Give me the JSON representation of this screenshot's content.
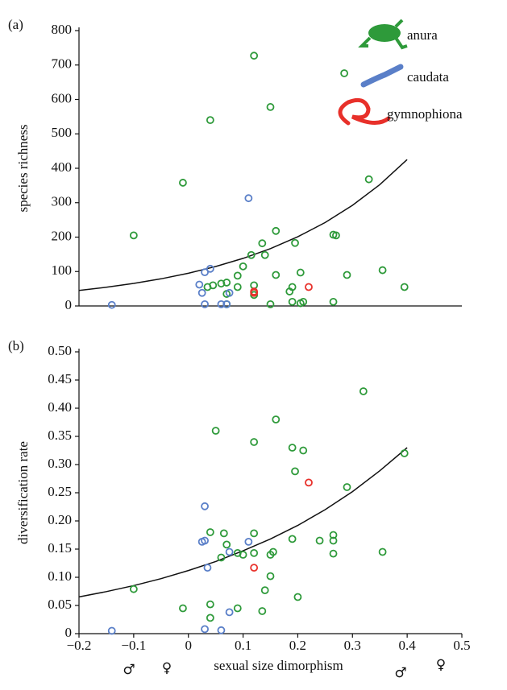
{
  "chart_data": [
    {
      "type": "scatter",
      "panel_label": "(a)",
      "ylabel": "species richness",
      "xlim": [
        -0.2,
        0.5
      ],
      "ylim": [
        0,
        800
      ],
      "yticks": [
        0,
        100,
        200,
        300,
        400,
        500,
        600,
        700,
        800
      ],
      "legend": "upper right",
      "series": [
        {
          "name": "anura",
          "color": "#2e9a3a",
          "x": [
            0.12,
            0.285,
            0.15,
            0.04,
            0.33,
            -0.01,
            -0.1,
            0.16,
            0.265,
            0.27,
            0.195,
            0.135,
            0.14,
            0.115,
            0.1,
            0.355,
            0.205,
            0.29,
            0.16,
            0.09,
            0.07,
            0.06,
            0.045,
            0.035,
            0.12,
            0.09,
            0.19,
            0.185,
            0.07,
            0.12,
            0.395,
            0.265,
            0.19,
            0.205,
            0.21,
            0.15,
            0.07
          ],
          "values": [
            727,
            676,
            578,
            540,
            368,
            358,
            205,
            218,
            207,
            205,
            183,
            182,
            148,
            148,
            115,
            104,
            97,
            90,
            90,
            88,
            68,
            65,
            60,
            55,
            60,
            55,
            55,
            42,
            35,
            32,
            55,
            12,
            12,
            8,
            12,
            5,
            5
          ]
        },
        {
          "name": "caudata",
          "color": "#5a7fc8",
          "x": [
            0.11,
            0.04,
            0.03,
            0.02,
            0.025,
            0.075,
            0.03,
            0.06,
            0.07,
            -0.14
          ],
          "values": [
            313,
            108,
            98,
            62,
            38,
            38,
            5,
            5,
            5,
            3
          ]
        },
        {
          "name": "gymnophiona",
          "color": "#e8302a",
          "x": [
            0.22,
            0.12,
            0.12
          ],
          "values": [
            55,
            42,
            38
          ]
        }
      ],
      "fit": {
        "color": "#111111",
        "x": [
          -0.2,
          -0.15,
          -0.1,
          -0.05,
          0,
          0.05,
          0.1,
          0.15,
          0.2,
          0.25,
          0.3,
          0.35,
          0.4
        ],
        "values": [
          45.0,
          54.2,
          65.4,
          78.9,
          95,
          114.6,
          138.2,
          166.6,
          201,
          242.4,
          292.3,
          352.6,
          425.2
        ]
      }
    },
    {
      "type": "scatter",
      "panel_label": "(b)",
      "ylabel": "diversification rate",
      "xlabel": "sexual size dimorphism",
      "xlim": [
        -0.2,
        0.5
      ],
      "xticks": [
        {
          "value": -0.2,
          "label": "−0.2"
        },
        {
          "value": -0.1,
          "label": "−0.1"
        },
        0,
        0.1,
        0.2,
        0.3,
        0.4,
        0.5
      ],
      "ylim": [
        0,
        0.5
      ],
      "yticks": [
        0,
        0.05,
        {
          "value": 0.1,
          "label": "0.10"
        },
        0.15,
        {
          "value": 0.2,
          "label": "0.20"
        },
        0.25,
        {
          "value": 0.3,
          "label": "0.30"
        },
        0.35,
        {
          "value": 0.4,
          "label": "0.40"
        },
        0.45,
        {
          "value": 0.5,
          "label": "0.50"
        }
      ],
      "series": [
        {
          "color": "#2e9a3a",
          "x": [
            0.32,
            0.16,
            0.05,
            0.12,
            0.19,
            0.21,
            0.395,
            0.195,
            0.29,
            0.265,
            0.265,
            0.24,
            0.19,
            0.12,
            0.04,
            0.065,
            0.07,
            0.155,
            0.15,
            0.12,
            0.09,
            0.1,
            0.265,
            0.355,
            0.06,
            -0.1,
            0.14,
            0.15,
            0.2,
            -0.01,
            0.04,
            0.09,
            0.04,
            0.135
          ],
          "values": [
            0.43,
            0.38,
            0.36,
            0.34,
            0.33,
            0.325,
            0.32,
            0.288,
            0.26,
            0.175,
            0.165,
            0.165,
            0.168,
            0.178,
            0.18,
            0.178,
            0.158,
            0.145,
            0.14,
            0.143,
            0.143,
            0.14,
            0.142,
            0.145,
            0.135,
            0.079,
            0.077,
            0.102,
            0.065,
            0.045,
            0.052,
            0.045,
            0.028,
            0.04
          ]
        },
        {
          "color": "#5a7fc8",
          "x": [
            0.03,
            0.025,
            0.03,
            0.11,
            0.075,
            0.035,
            0.075,
            0.03,
            0.06,
            -0.14
          ],
          "values": [
            0.226,
            0.163,
            0.165,
            0.163,
            0.145,
            0.117,
            0.038,
            0.008,
            0.006,
            0.005
          ]
        },
        {
          "color": "#e8302a",
          "x": [
            0.22,
            0.12
          ],
          "values": [
            0.268,
            0.117
          ]
        }
      ],
      "fit": {
        "color": "#111111",
        "x": [
          -0.2,
          -0.15,
          -0.1,
          -0.05,
          0,
          0.05,
          0.1,
          0.15,
          0.2,
          0.25,
          0.3,
          0.35,
          0.4
        ],
        "values": [
          0.0652,
          0.0746,
          0.0853,
          0.0976,
          0.112,
          0.128,
          0.147,
          0.168,
          0.192,
          0.22,
          0.252,
          0.289,
          0.33
        ]
      },
      "annotations": [
        "♂",
        "♀",
        "♂",
        "♀"
      ]
    }
  ]
}
